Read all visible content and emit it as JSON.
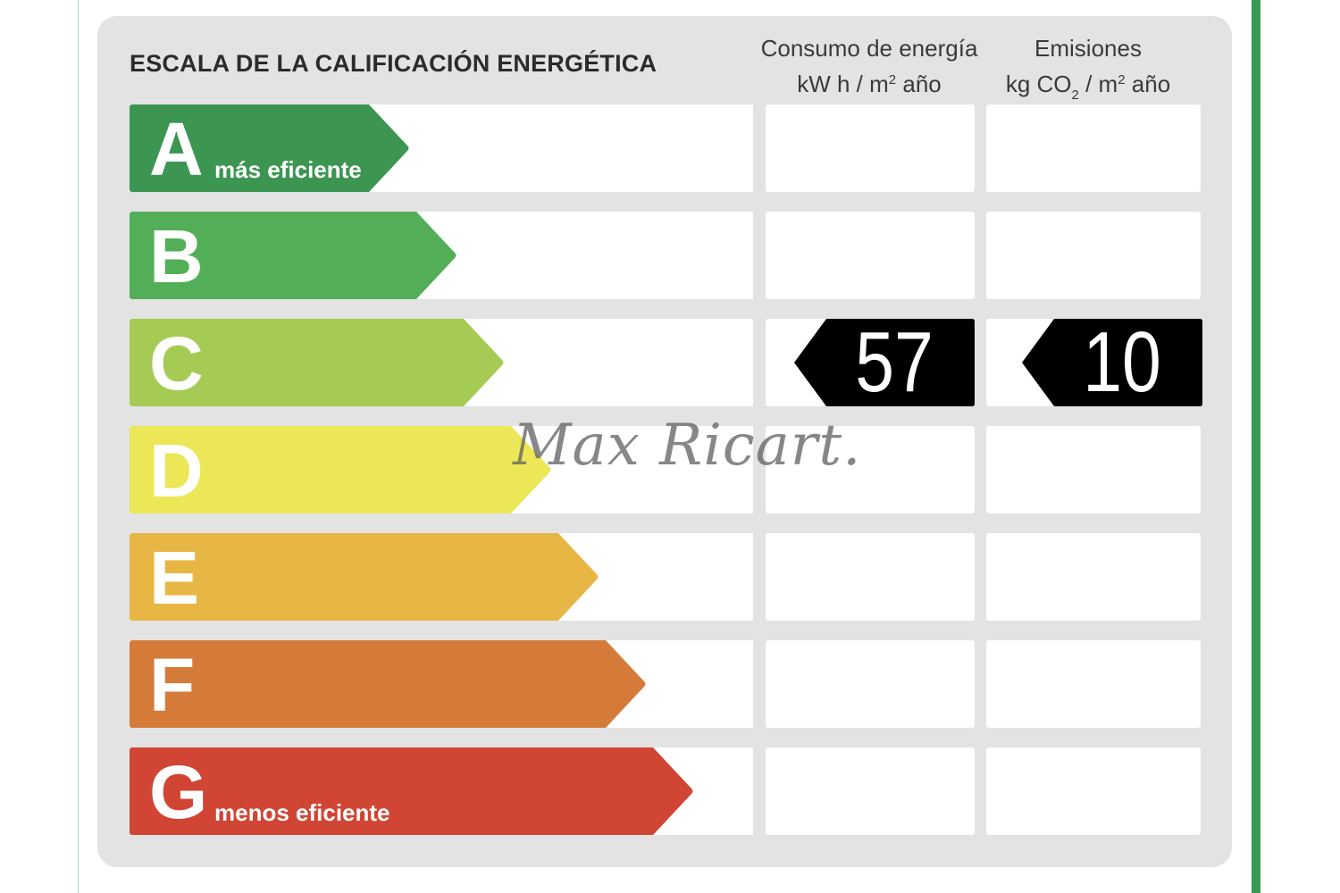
{
  "header": {
    "title": "ESCALA DE LA CALIFICACIÓN ENERGÉTICA",
    "energy_col": {
      "line1": "Consumo de energía",
      "line2_unit": "kW h  / m",
      "line2_sup": "2",
      "line2_tail": " año"
    },
    "emissions_col": {
      "line1": "Emisiones",
      "line2_unit": "kg CO",
      "line2_sub": "2",
      "line2_mid": "  / m",
      "line2_sup": "2",
      "line2_tail": " año"
    }
  },
  "ratings": [
    {
      "letter": "A",
      "caption": "más eficiente",
      "color": "#3c9652"
    },
    {
      "letter": "B",
      "caption": "",
      "color": "#52ae57"
    },
    {
      "letter": "C",
      "caption": "",
      "color": "#a6cb54"
    },
    {
      "letter": "D",
      "caption": "",
      "color": "#ebe757"
    },
    {
      "letter": "E",
      "caption": "",
      "color": "#e8b644"
    },
    {
      "letter": "F",
      "caption": "",
      "color": "#d47b3a"
    },
    {
      "letter": "G",
      "caption": "menos eficiente",
      "color": "#d04533"
    }
  ],
  "result": {
    "rating": "C",
    "energy_value": "57",
    "emissions_value": "10",
    "tag_color": "#000000"
  },
  "watermark": "Max Ricart."
}
